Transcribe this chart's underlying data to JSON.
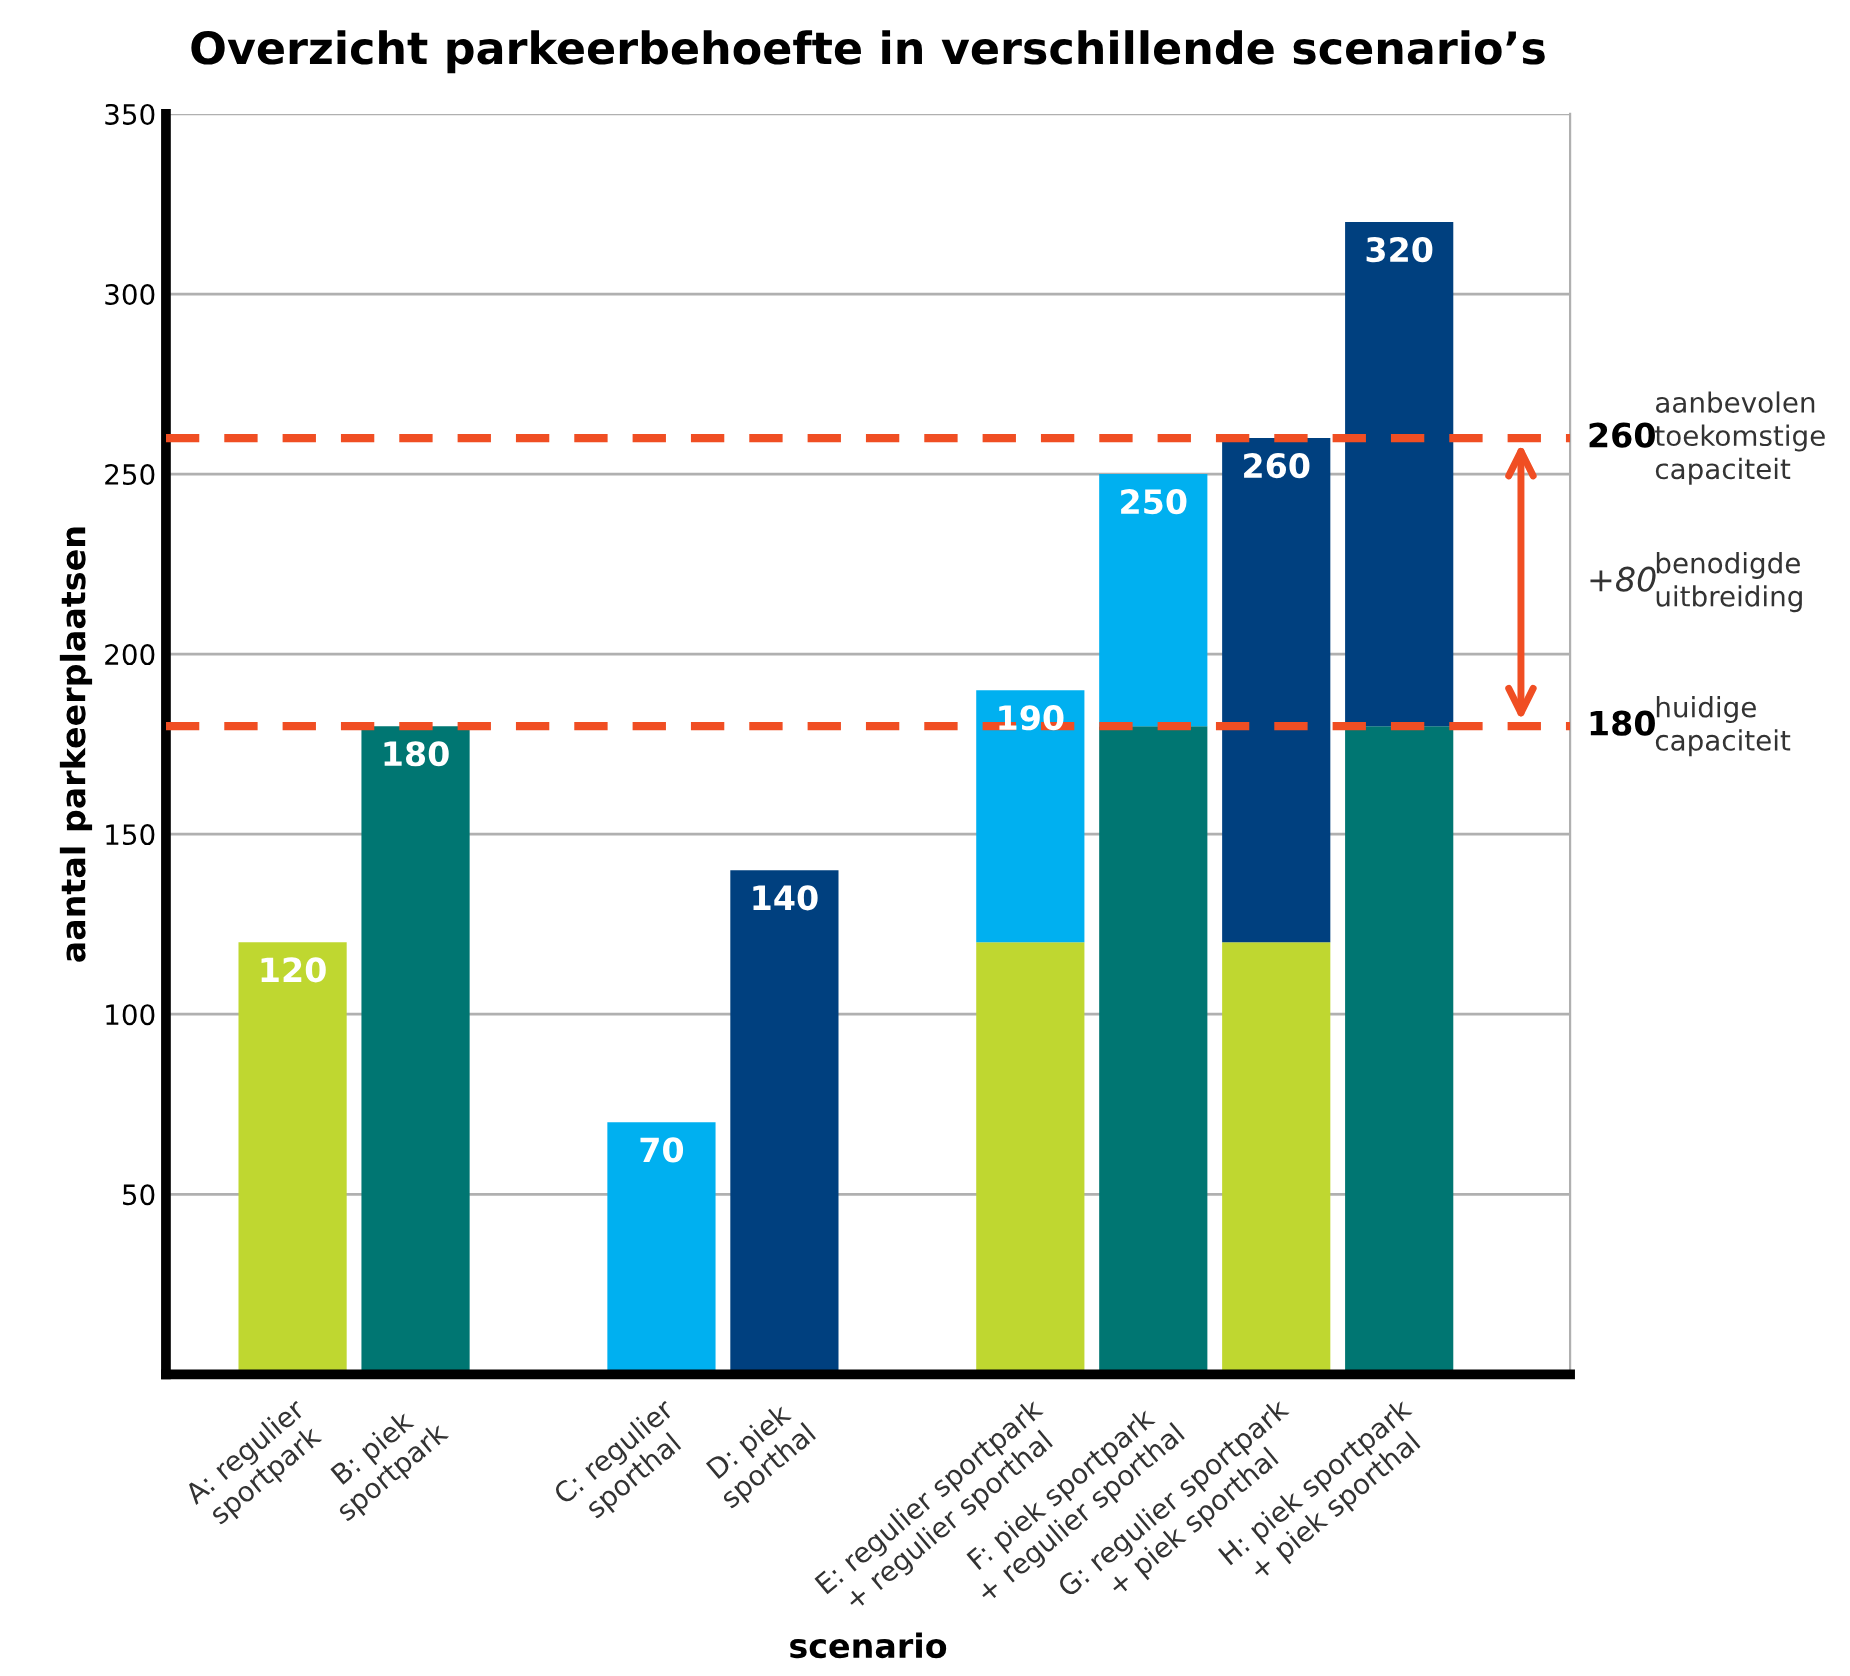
{
  "chart_data": {
    "type": "bar",
    "title": "Overzicht parkeerbehoefte in verschillende scenario’s",
    "xlabel": "scenario",
    "ylabel": "aantal parkeerplaatsen",
    "categories": [
      "A: regulier\nsportpark",
      "B: piek\nsportpark",
      null,
      "C: regulier\nsporthal",
      "D: piek\nsporthal",
      null,
      "E: regulier sportpark\n+ regulier sporthal",
      "F: piek sportpark\n+ regulier sporthal",
      "G: regulier sportpark\n+ piek sporthal",
      "H: piek sportpark\n+ piek sporthal"
    ],
    "stacked": true,
    "series": [
      {
        "color": "#bfd730",
        "values": [
          120,
          null,
          null,
          null,
          null,
          null,
          120,
          null,
          120,
          null
        ]
      },
      {
        "color": "#007672",
        "values": [
          null,
          180,
          null,
          null,
          null,
          null,
          null,
          180,
          null,
          180
        ]
      },
      {
        "color": "#00b0f0",
        "values": [
          null,
          null,
          null,
          70,
          null,
          null,
          70,
          70,
          null,
          null
        ]
      },
      {
        "color": "#00407f",
        "values": [
          null,
          null,
          null,
          null,
          140,
          null,
          null,
          null,
          140,
          140
        ]
      }
    ],
    "totals": [
      "120",
      "180",
      null,
      "70",
      "140",
      null,
      "190",
      "250",
      "260",
      "320"
    ],
    "ylim": [
      0,
      350
    ],
    "yticks": [
      50,
      100,
      150,
      200,
      250,
      300,
      350
    ],
    "grid": "y",
    "ref_lines": [
      {
        "axis": "y",
        "value": 260,
        "label": "260",
        "color": "#f04e23",
        "line_style": "dashed"
      },
      {
        "axis": "y",
        "value": 180,
        "label": "180",
        "color": "#f04e23",
        "line_style": "dashed"
      }
    ],
    "annotations": [
      "aanbevolen\ntoekomstige\ncapaciteit",
      "+80",
      "benodigde\nuitbreiding",
      "huidige\ncapaciteit"
    ]
  }
}
